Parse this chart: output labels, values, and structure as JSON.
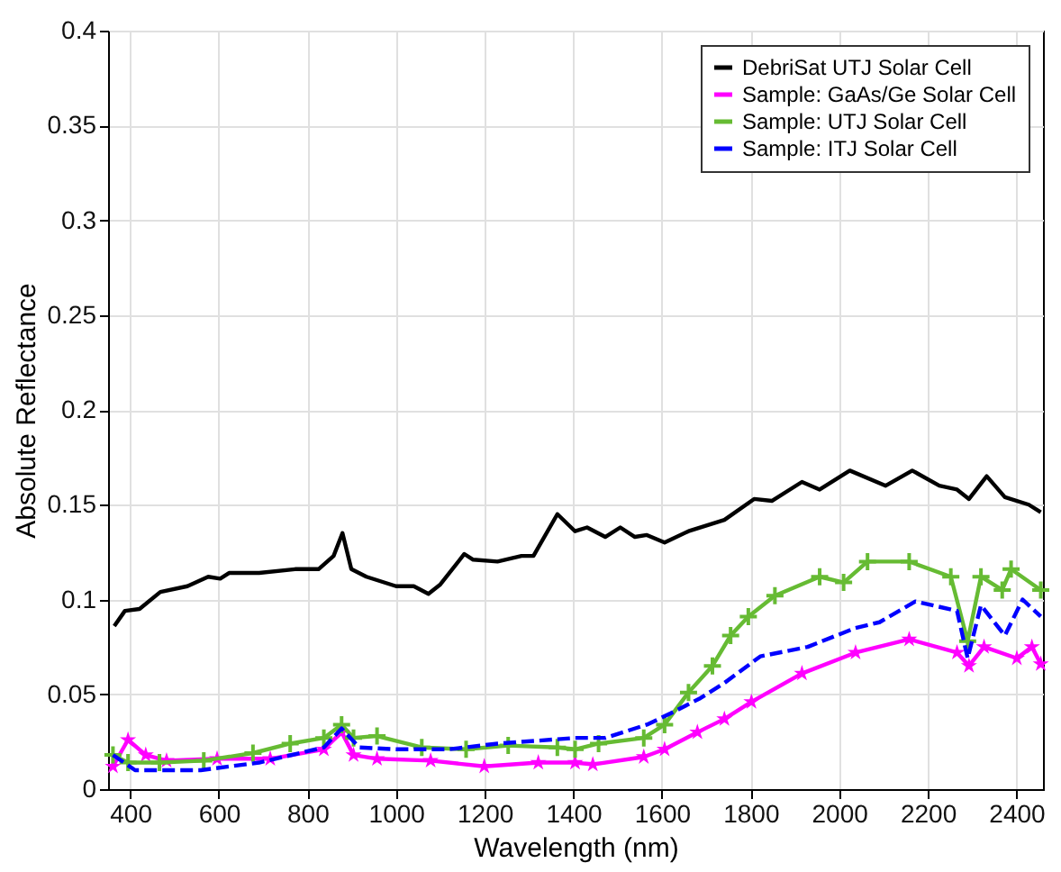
{
  "chart_data": {
    "type": "line",
    "xlabel": "Wavelength (nm)",
    "ylabel": "Absolute Reflectance",
    "xlim": [
      350,
      2460
    ],
    "ylim": [
      0,
      0.4
    ],
    "xticks": [
      400,
      600,
      800,
      1000,
      1200,
      1400,
      1600,
      1800,
      2000,
      2200,
      2400
    ],
    "yticks": [
      0,
      0.05,
      0.1,
      0.15,
      0.2,
      0.25,
      0.3,
      0.35,
      0.4
    ],
    "grid": true,
    "legend": "top right",
    "series": [
      {
        "name": "DebriSat UTJ Solar Cell",
        "color": "#000000",
        "marker": "none",
        "line_style": "solid",
        "x": [
          364,
          388,
          421,
          468,
          529,
          576,
          603,
          623,
          691,
          772,
          825,
          859,
          879,
          899,
          933,
          1000,
          1040,
          1073,
          1100,
          1154,
          1174,
          1229,
          1283,
          1310,
          1364,
          1404,
          1431,
          1472,
          1506,
          1539,
          1566,
          1606,
          1660,
          1741,
          1808,
          1848,
          1916,
          1956,
          2024,
          2105,
          2165,
          2226,
          2266,
          2293,
          2333,
          2374,
          2428,
          2455
        ],
        "values": [
          0.086,
          0.094,
          0.095,
          0.104,
          0.107,
          0.112,
          0.111,
          0.114,
          0.114,
          0.116,
          0.116,
          0.123,
          0.135,
          0.116,
          0.112,
          0.107,
          0.107,
          0.103,
          0.108,
          0.124,
          0.121,
          0.12,
          0.123,
          0.123,
          0.145,
          0.136,
          0.138,
          0.133,
          0.138,
          0.133,
          0.134,
          0.13,
          0.136,
          0.142,
          0.153,
          0.152,
          0.162,
          0.158,
          0.168,
          0.16,
          0.168,
          0.16,
          0.158,
          0.153,
          0.165,
          0.154,
          0.15,
          0.146
        ]
      },
      {
        "name": "Sample: GaAs/Ge Solar Cell",
        "color": "#ff00ff",
        "marker": "star",
        "line_style": "solid",
        "x": [
          361,
          395,
          435,
          482,
          596,
          716,
          837,
          877,
          904,
          957,
          1078,
          1199,
          1321,
          1404,
          1444,
          1559,
          1606,
          1680,
          1741,
          1802,
          1916,
          2037,
          2158,
          2266,
          2293,
          2327,
          2401,
          2435,
          2455
        ],
        "values": [
          0.012,
          0.026,
          0.018,
          0.015,
          0.016,
          0.016,
          0.021,
          0.03,
          0.018,
          0.016,
          0.015,
          0.012,
          0.014,
          0.014,
          0.013,
          0.017,
          0.021,
          0.03,
          0.037,
          0.046,
          0.061,
          0.072,
          0.079,
          0.072,
          0.065,
          0.075,
          0.069,
          0.075,
          0.066
        ]
      },
      {
        "name": "Sample: UTJ Solar Cell",
        "color": "#66bb33",
        "marker": "cross",
        "line_style": "solid",
        "x": [
          361,
          395,
          466,
          566,
          677,
          761,
          837,
          877,
          904,
          957,
          1058,
          1158,
          1253,
          1364,
          1404,
          1457,
          1559,
          1606,
          1660,
          1714,
          1755,
          1795,
          1855,
          1956,
          2010,
          2064,
          2158,
          2252,
          2290,
          2320,
          2368,
          2388,
          2455
        ],
        "values": [
          0.018,
          0.014,
          0.014,
          0.015,
          0.019,
          0.024,
          0.027,
          0.034,
          0.027,
          0.028,
          0.022,
          0.021,
          0.023,
          0.022,
          0.021,
          0.024,
          0.027,
          0.034,
          0.051,
          0.065,
          0.081,
          0.091,
          0.102,
          0.112,
          0.109,
          0.12,
          0.12,
          0.112,
          0.078,
          0.112,
          0.105,
          0.116,
          0.105
        ]
      },
      {
        "name": "Sample: ITJ Solar Cell",
        "color": "#0000ff",
        "marker": "none",
        "line_style": "dashed",
        "x": [
          361,
          411,
          559,
          691,
          837,
          877,
          917,
          1000,
          1119,
          1229,
          1404,
          1472,
          1566,
          1620,
          1687,
          1741,
          1822,
          1929,
          2037,
          2091,
          2172,
          2266,
          2290,
          2320,
          2374,
          2414,
          2455
        ],
        "values": [
          0.018,
          0.01,
          0.01,
          0.014,
          0.022,
          0.032,
          0.022,
          0.021,
          0.021,
          0.024,
          0.027,
          0.027,
          0.034,
          0.04,
          0.048,
          0.056,
          0.07,
          0.075,
          0.085,
          0.088,
          0.099,
          0.094,
          0.069,
          0.097,
          0.081,
          0.1,
          0.091
        ]
      }
    ]
  }
}
